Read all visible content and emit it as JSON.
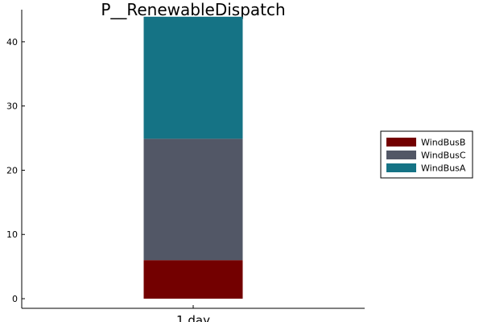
{
  "chart_data": {
    "type": "bar",
    "stacked": true,
    "title": "P__RenewableDispatch",
    "xlabel": "",
    "ylabel": "",
    "categories": [
      "1 day"
    ],
    "ylim": [
      -1.5,
      45
    ],
    "yticks": [
      0,
      10,
      20,
      30,
      40
    ],
    "ytick_labels": [
      "0",
      "10",
      "20",
      "30",
      "40"
    ],
    "grid": false,
    "legend_position": "right",
    "series": [
      {
        "name": "WindBusB",
        "values": [
          6
        ],
        "color": "#730000"
      },
      {
        "name": "WindBusC",
        "values": [
          18.9
        ],
        "color": "#525766"
      },
      {
        "name": "WindBusA",
        "values": [
          19
        ],
        "color": "#157385"
      }
    ]
  }
}
